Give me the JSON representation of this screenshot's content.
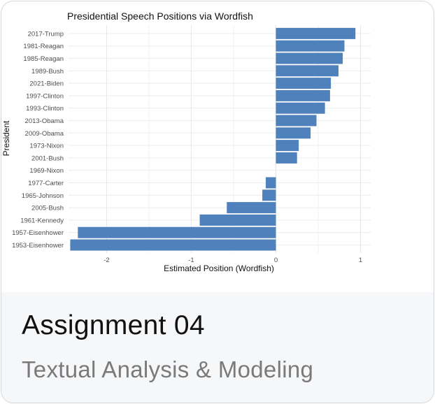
{
  "card": {
    "title": "Assignment 04",
    "subtitle": "Textual Analysis & Modeling"
  },
  "chart_data": {
    "type": "bar",
    "orientation": "horizontal",
    "title": "Presidential Speech Positions via Wordfish",
    "xlabel": "Estimated Position (Wordfish)",
    "ylabel": "President",
    "xlim": [
      -2.45,
      1.12
    ],
    "xticks": [
      -2,
      -1,
      0,
      1
    ],
    "grid": true,
    "bar_color": "#4f81bd",
    "categories": [
      "2017-Trump",
      "1981-Reagan",
      "1985-Reagan",
      "1989-Bush",
      "2021-Biden",
      "1997-Clinton",
      "1993-Clinton",
      "2013-Obama",
      "2009-Obama",
      "1973-Nixon",
      "2001-Bush",
      "1969-Nixon",
      "1977-Carter",
      "1965-Johnson",
      "2005-Bush",
      "1961-Kennedy",
      "1957-Eisenhower",
      "1953-Eisenhower"
    ],
    "values": [
      0.94,
      0.81,
      0.79,
      0.74,
      0.65,
      0.64,
      0.58,
      0.48,
      0.41,
      0.27,
      0.25,
      0.0,
      -0.12,
      -0.16,
      -0.58,
      -0.9,
      -2.34,
      -2.43
    ]
  }
}
